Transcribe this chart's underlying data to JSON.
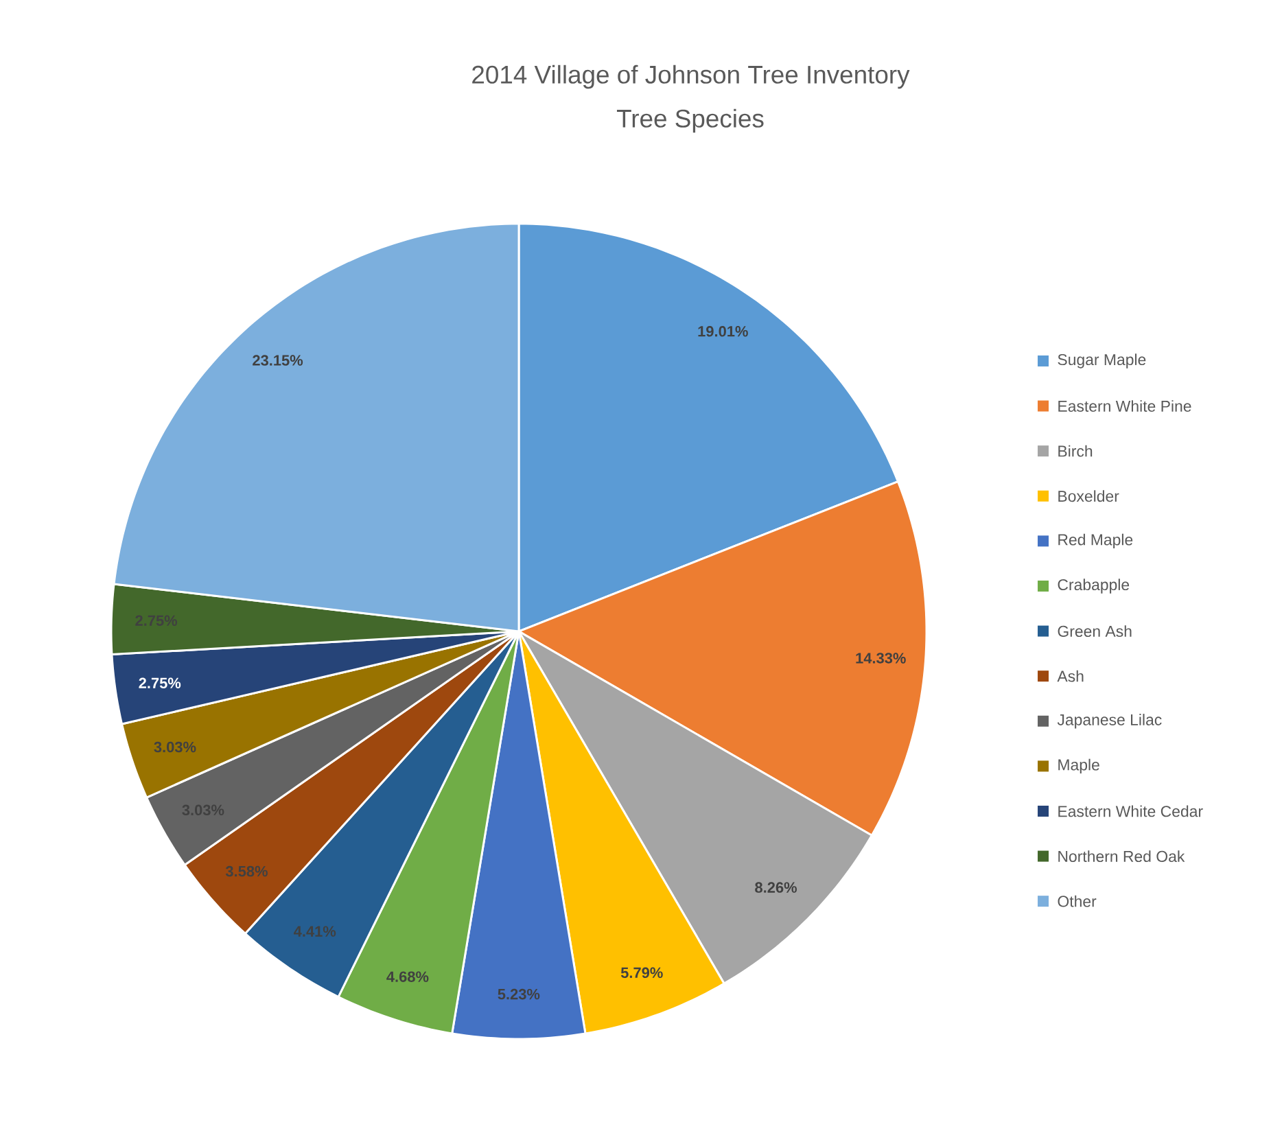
{
  "chart_data": {
    "type": "pie",
    "title": "2014 Village of Johnson Tree Inventory",
    "subtitle": "Tree Species",
    "categories": [
      "Sugar Maple",
      "Eastern White Pine",
      "Birch",
      "Boxelder",
      "Red Maple",
      "Crabapple",
      "Green Ash",
      "Ash",
      "Japanese Lilac",
      "Maple",
      "Eastern White Cedar",
      "Northern Red Oak",
      "Other"
    ],
    "values": [
      19.01,
      14.33,
      8.26,
      5.79,
      5.23,
      4.68,
      4.41,
      3.58,
      3.03,
      3.03,
      2.75,
      2.75,
      23.15
    ],
    "colors": [
      "#5b9bd5",
      "#ed7d31",
      "#a5a5a5",
      "#ffc000",
      "#4472c4",
      "#70ad47",
      "#255e91",
      "#9e480e",
      "#636363",
      "#997300",
      "#264478",
      "#43682b",
      "#7cafdd"
    ],
    "value_labels": [
      "19.01%",
      "14.33%",
      "8.26%",
      "5.79%",
      "5.23%",
      "4.68%",
      "4.41%",
      "3.58%",
      "3.03%",
      "3.03%",
      "2.75%",
      "2.75%",
      "23.15%"
    ],
    "legend": "right"
  }
}
